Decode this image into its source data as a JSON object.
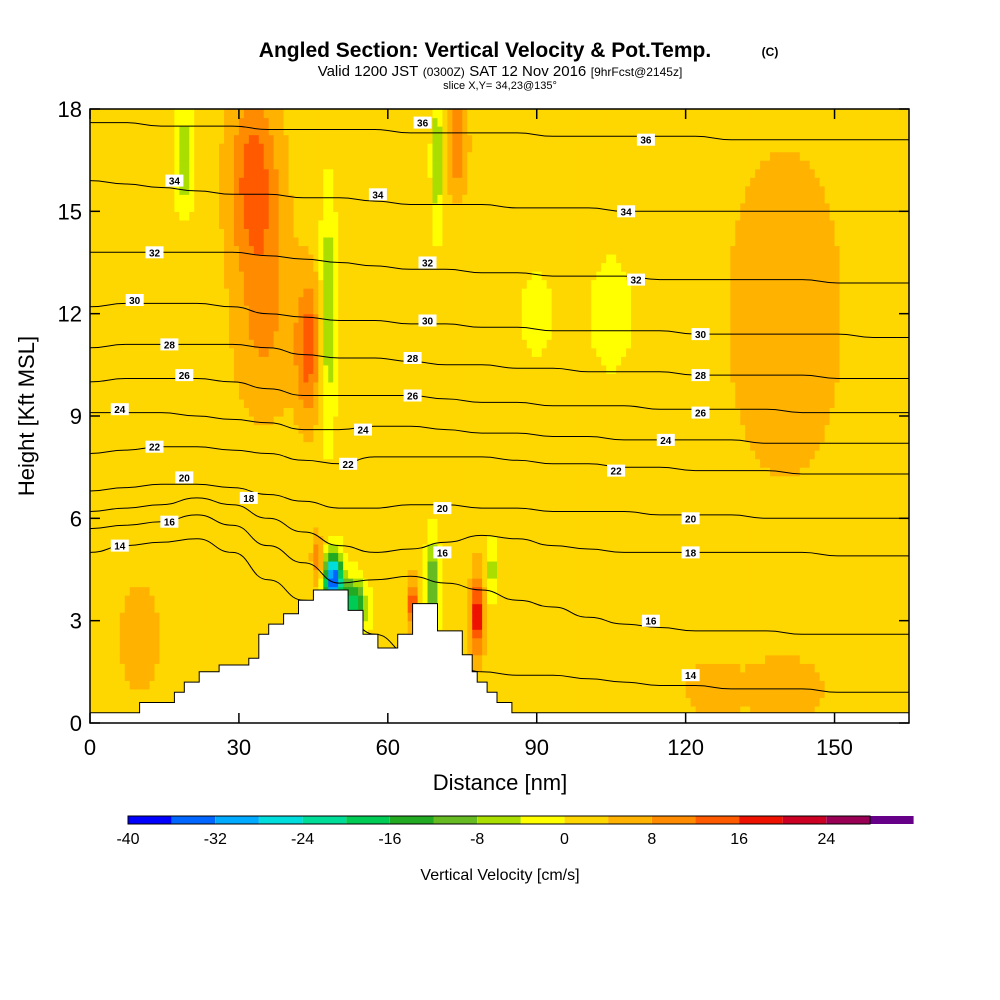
{
  "chart_data": {
    "type": "heatmap",
    "title": "Angled Section: Vertical Velocity & Pot.Temp.",
    "title_unit": "(C)",
    "subtitle": {
      "prefix": "Valid 1200 JST",
      "zulu": "(0300Z)",
      "date": "SAT 12 Nov 2016",
      "forecast": "[9hrFcst@2145z]"
    },
    "slice_label": "slice X,Y= 34,23@135°",
    "xlabel": "Distance [nm]",
    "ylabel": "Height [Kft MSL]",
    "xlim": [
      0,
      165
    ],
    "ylim": [
      0,
      18
    ],
    "x_ticks": [
      "0",
      "30",
      "60",
      "90",
      "120",
      "150"
    ],
    "y_ticks": [
      "0",
      "3",
      "6",
      "9",
      "12",
      "15",
      "18"
    ],
    "colorbar": {
      "label": "Vertical Velocity [cm/s]",
      "range": [
        -40,
        28
      ],
      "step": 4,
      "tick_labels": [
        "-40",
        "-32",
        "-24",
        "-16",
        "-8",
        "0",
        "8",
        "16",
        "24"
      ],
      "colors": [
        "#0000ff",
        "#0066ff",
        "#00aaff",
        "#00dddd",
        "#00dd99",
        "#00cc55",
        "#22aa22",
        "#66bb22",
        "#aadd00",
        "#ffff00",
        "#ffd700",
        "#ffb300",
        "#ff8c00",
        "#ff5a00",
        "#ee1100",
        "#cc0022",
        "#990055",
        "#660088"
      ]
    },
    "background_velocity": 2,
    "velocity_features": [
      {
        "x": 33,
        "y": 16,
        "sx": 5,
        "sy": 2.5,
        "v": 12
      },
      {
        "x": 35,
        "y": 12,
        "sx": 6,
        "sy": 3,
        "v": 7
      },
      {
        "x": 44,
        "y": 11,
        "sx": 2.5,
        "sy": 2,
        "v": 12
      },
      {
        "x": 48,
        "y": 12,
        "sx": 1.6,
        "sy": 3.5,
        "v": -10
      },
      {
        "x": 49,
        "y": 4.2,
        "sx": 1.8,
        "sy": 0.8,
        "v": -38
      },
      {
        "x": 53,
        "y": 3.4,
        "sx": 2.5,
        "sy": 0.8,
        "v": -22
      },
      {
        "x": 46,
        "y": 4.8,
        "sx": 1.2,
        "sy": 0.7,
        "v": 10
      },
      {
        "x": 10,
        "y": 2.5,
        "sx": 4,
        "sy": 1.5,
        "v": 6
      },
      {
        "x": 19,
        "y": 16.5,
        "sx": 2,
        "sy": 1.5,
        "v": -9
      },
      {
        "x": 70,
        "y": 16.5,
        "sx": 1.2,
        "sy": 2,
        "v": -10
      },
      {
        "x": 74,
        "y": 17,
        "sx": 2,
        "sy": 1.5,
        "v": 10
      },
      {
        "x": 69,
        "y": 4,
        "sx": 1.3,
        "sy": 1.5,
        "v": -14
      },
      {
        "x": 65,
        "y": 3.5,
        "sx": 1,
        "sy": 0.7,
        "v": 16
      },
      {
        "x": 78,
        "y": 3.2,
        "sx": 1.3,
        "sy": 1.2,
        "v": 18
      },
      {
        "x": 81,
        "y": 4.5,
        "sx": 1.2,
        "sy": 1,
        "v": -8
      },
      {
        "x": 90,
        "y": 12,
        "sx": 4,
        "sy": 1.5,
        "v": -4
      },
      {
        "x": 105,
        "y": 12,
        "sx": 5,
        "sy": 2,
        "v": -4
      },
      {
        "x": 140,
        "y": 12,
        "sx": 12,
        "sy": 5,
        "v": 5
      },
      {
        "x": 140,
        "y": 1,
        "sx": 8,
        "sy": 1,
        "v": 5
      },
      {
        "x": 125,
        "y": 1,
        "sx": 6,
        "sy": 1,
        "v": 4
      }
    ],
    "terrain": [
      [
        0,
        0.3
      ],
      [
        10,
        0.3
      ],
      [
        10,
        0.6
      ],
      [
        17,
        0.6
      ],
      [
        17,
        0.9
      ],
      [
        19,
        0.9
      ],
      [
        19,
        1.2
      ],
      [
        22,
        1.2
      ],
      [
        22,
        1.5
      ],
      [
        26,
        1.5
      ],
      [
        26,
        1.7
      ],
      [
        32,
        1.7
      ],
      [
        32,
        1.9
      ],
      [
        34,
        1.9
      ],
      [
        34,
        2.6
      ],
      [
        36,
        2.6
      ],
      [
        36,
        2.9
      ],
      [
        39,
        2.9
      ],
      [
        39,
        3.2
      ],
      [
        42,
        3.2
      ],
      [
        42,
        3.6
      ],
      [
        45,
        3.6
      ],
      [
        45,
        3.9
      ],
      [
        52,
        3.9
      ],
      [
        52,
        3.3
      ],
      [
        55,
        3.3
      ],
      [
        55,
        2.6
      ],
      [
        58,
        2.6
      ],
      [
        58,
        2.2
      ],
      [
        62,
        2.2
      ],
      [
        62,
        2.6
      ],
      [
        65,
        2.6
      ],
      [
        65,
        3.5
      ],
      [
        70,
        3.5
      ],
      [
        70,
        2.7
      ],
      [
        75,
        2.7
      ],
      [
        75,
        2
      ],
      [
        77,
        2
      ],
      [
        77,
        1.5
      ],
      [
        78,
        1.5
      ],
      [
        78,
        1.2
      ],
      [
        80,
        1.2
      ],
      [
        80,
        0.9
      ],
      [
        82,
        0.9
      ],
      [
        82,
        0.6
      ],
      [
        85,
        0.6
      ],
      [
        85,
        0.3
      ],
      [
        165,
        0.3
      ]
    ],
    "isentropes": [
      {
        "theta": 14,
        "y": [
          5.0,
          5.2,
          5.3,
          5.4,
          5.0,
          4.2,
          3.6,
          3.3,
          2.6,
          2.0,
          1.8,
          1.5,
          1.4,
          1.4,
          1.3,
          1.2,
          1.1,
          1.1,
          1.0,
          1.0,
          1.0,
          0.9,
          0.9,
          0.9
        ]
      },
      {
        "theta": 16,
        "y": [
          5.7,
          5.8,
          5.9,
          6.1,
          5.8,
          5.2,
          4.7,
          4.1,
          4.2,
          4.3,
          4.1,
          3.9,
          3.6,
          3.4,
          3.1,
          2.9,
          2.8,
          2.7,
          2.7,
          2.7,
          2.6,
          2.6,
          2.6,
          2.6
        ]
      },
      {
        "theta": 18,
        "y": [
          6.2,
          6.3,
          6.4,
          6.6,
          6.4,
          6.0,
          5.6,
          5.2,
          5.0,
          5.1,
          5.3,
          5.5,
          5.4,
          5.2,
          5.1,
          5.0,
          5.0,
          5.0,
          5.0,
          5.0,
          5.0,
          4.9,
          4.9,
          4.9
        ]
      },
      {
        "theta": 20,
        "y": [
          6.8,
          6.9,
          7.0,
          7.0,
          6.9,
          6.7,
          6.5,
          6.3,
          6.3,
          6.4,
          6.4,
          6.3,
          6.3,
          6.2,
          6.2,
          6.2,
          6.1,
          6.1,
          6.1,
          6.0,
          6.0,
          6.0,
          6.0,
          6.0
        ]
      },
      {
        "theta": 22,
        "y": [
          7.9,
          8.0,
          8.1,
          8.1,
          8.0,
          7.9,
          7.7,
          7.6,
          7.8,
          7.8,
          7.8,
          7.8,
          7.7,
          7.6,
          7.6,
          7.5,
          7.5,
          7.4,
          7.4,
          7.4,
          7.3,
          7.3,
          7.3,
          7.3
        ]
      },
      {
        "theta": 24,
        "y": [
          9.1,
          9.1,
          9.1,
          9.0,
          8.9,
          8.8,
          8.6,
          8.6,
          8.7,
          8.7,
          8.6,
          8.5,
          8.5,
          8.4,
          8.4,
          8.3,
          8.3,
          8.3,
          8.3,
          8.2,
          8.2,
          8.2,
          8.2,
          8.2
        ]
      },
      {
        "theta": 26,
        "y": [
          10.0,
          10.1,
          10.1,
          10.1,
          10.0,
          9.8,
          9.6,
          9.6,
          9.6,
          9.6,
          9.5,
          9.4,
          9.4,
          9.3,
          9.3,
          9.3,
          9.2,
          9.2,
          9.2,
          9.2,
          9.1,
          9.1,
          9.1,
          9.1
        ]
      },
      {
        "theta": 28,
        "y": [
          11.0,
          11.1,
          11.1,
          11.1,
          11.1,
          11.0,
          10.8,
          10.7,
          10.7,
          10.6,
          10.5,
          10.5,
          10.4,
          10.4,
          10.3,
          10.3,
          10.3,
          10.2,
          10.2,
          10.2,
          10.2,
          10.1,
          10.1,
          10.1
        ]
      },
      {
        "theta": 30,
        "y": [
          12.2,
          12.3,
          12.3,
          12.3,
          12.2,
          12.0,
          11.9,
          11.8,
          11.8,
          11.7,
          11.7,
          11.6,
          11.6,
          11.5,
          11.5,
          11.5,
          11.5,
          11.4,
          11.4,
          11.4,
          11.4,
          11.4,
          11.3,
          11.3
        ]
      },
      {
        "theta": 32,
        "y": [
          13.8,
          13.8,
          13.8,
          13.8,
          13.8,
          13.7,
          13.6,
          13.5,
          13.4,
          13.3,
          13.3,
          13.2,
          13.2,
          13.1,
          13.1,
          13.1,
          13.0,
          13.0,
          13.0,
          13.0,
          13.0,
          12.9,
          12.9,
          12.9
        ]
      },
      {
        "theta": 34,
        "y": [
          15.9,
          15.8,
          15.7,
          15.6,
          15.5,
          15.5,
          15.4,
          15.4,
          15.3,
          15.2,
          15.2,
          15.2,
          15.1,
          15.1,
          15.1,
          15.0,
          15.0,
          15.0,
          15.0,
          15.0,
          15.0,
          15.0,
          15.0,
          15.0
        ]
      },
      {
        "theta": 36,
        "y": [
          17.6,
          17.6,
          17.5,
          17.5,
          17.5,
          17.4,
          17.4,
          17.4,
          17.4,
          17.3,
          17.3,
          17.3,
          17.3,
          17.2,
          17.2,
          17.2,
          17.2,
          17.2,
          17.1,
          17.1,
          17.1,
          17.1,
          17.1,
          17.1
        ]
      }
    ],
    "contour_labels": [
      {
        "text": "14",
        "x": 6,
        "y": 5.2
      },
      {
        "text": "16",
        "x": 16,
        "y": 5.9
      },
      {
        "text": "18",
        "x": 32,
        "y": 6.6
      },
      {
        "text": "20",
        "x": 19,
        "y": 7.2
      },
      {
        "text": "22",
        "x": 13,
        "y": 8.1
      },
      {
        "text": "24",
        "x": 6,
        "y": 9.2
      },
      {
        "text": "26",
        "x": 19,
        "y": 10.2
      },
      {
        "text": "28",
        "x": 16,
        "y": 11.1
      },
      {
        "text": "30",
        "x": 9,
        "y": 12.4
      },
      {
        "text": "32",
        "x": 13,
        "y": 13.8
      },
      {
        "text": "34",
        "x": 17,
        "y": 15.9
      },
      {
        "text": "34",
        "x": 58,
        "y": 15.5
      },
      {
        "text": "36",
        "x": 67,
        "y": 17.6
      },
      {
        "text": "36",
        "x": 112,
        "y": 17.1
      },
      {
        "text": "34",
        "x": 108,
        "y": 15.0
      },
      {
        "text": "32",
        "x": 68,
        "y": 13.5
      },
      {
        "text": "32",
        "x": 110,
        "y": 13.0
      },
      {
        "text": "30",
        "x": 68,
        "y": 11.8
      },
      {
        "text": "30",
        "x": 123,
        "y": 11.4
      },
      {
        "text": "28",
        "x": 65,
        "y": 10.7
      },
      {
        "text": "28",
        "x": 123,
        "y": 10.2
      },
      {
        "text": "26",
        "x": 65,
        "y": 9.6
      },
      {
        "text": "26",
        "x": 123,
        "y": 9.1
      },
      {
        "text": "24",
        "x": 55,
        "y": 8.6
      },
      {
        "text": "24",
        "x": 116,
        "y": 8.3
      },
      {
        "text": "22",
        "x": 52,
        "y": 7.6
      },
      {
        "text": "22",
        "x": 106,
        "y": 7.4
      },
      {
        "text": "20",
        "x": 71,
        "y": 6.3
      },
      {
        "text": "20",
        "x": 121,
        "y": 6.0
      },
      {
        "text": "18",
        "x": 121,
        "y": 5.0
      },
      {
        "text": "16",
        "x": 71,
        "y": 5.0
      },
      {
        "text": "16",
        "x": 113,
        "y": 3.0
      },
      {
        "text": "14",
        "x": 121,
        "y": 1.4
      }
    ]
  }
}
